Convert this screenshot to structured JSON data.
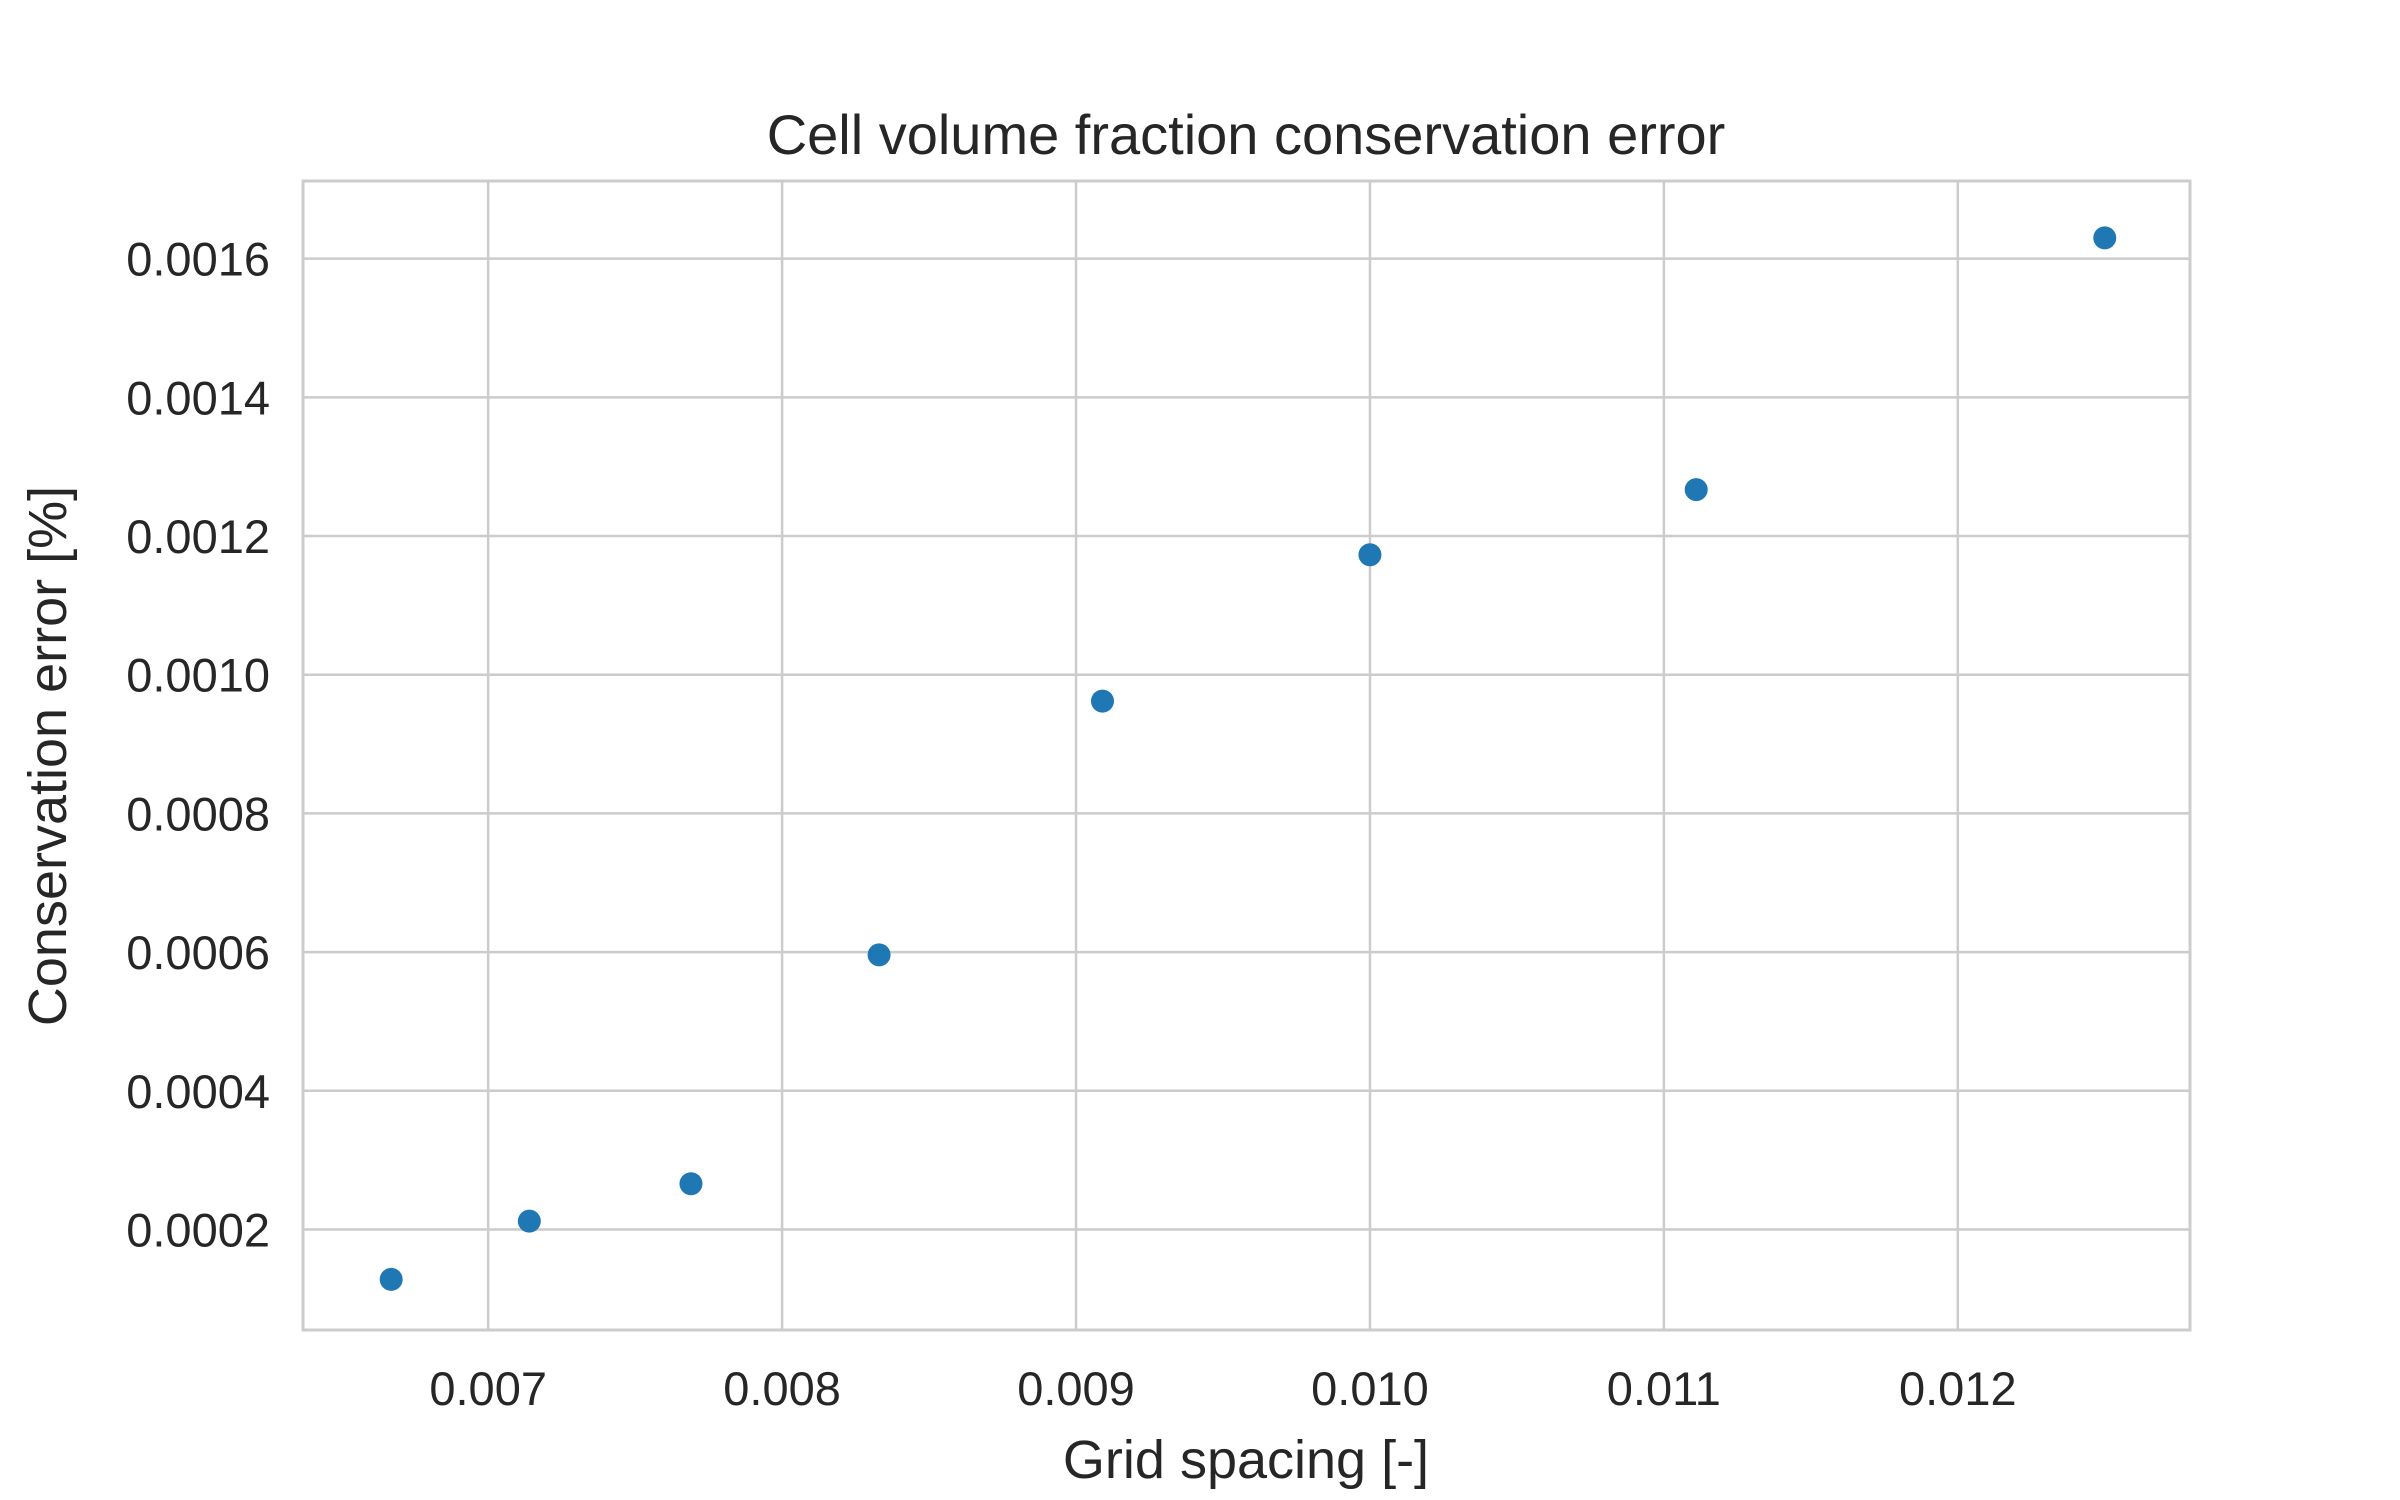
{
  "chart_data": {
    "type": "scatter",
    "title": "Cell volume fraction conservation error",
    "xlabel": "Grid spacing [-]",
    "ylabel": "Conservation error [%]",
    "xlim": [
      0.00637,
      0.01279
    ],
    "ylim": [
      5.5e-05,
      0.001712
    ],
    "xticks": [
      0.007,
      0.008,
      0.009,
      0.01,
      0.011,
      0.012
    ],
    "xtick_labels": [
      "0.007",
      "0.008",
      "0.009",
      "0.010",
      "0.011",
      "0.012"
    ],
    "yticks": [
      0.0002,
      0.0004,
      0.0006,
      0.0008,
      0.001,
      0.0012,
      0.0014,
      0.0016
    ],
    "ytick_labels": [
      "0.0002",
      "0.0004",
      "0.0006",
      "0.0008",
      "0.0010",
      "0.0012",
      "0.0014",
      "0.0016"
    ],
    "grid": true,
    "legend": "none",
    "color": "#1f77b4",
    "points": [
      {
        "x": 0.00667,
        "y": 0.000128
      },
      {
        "x": 0.00714,
        "y": 0.000212
      },
      {
        "x": 0.00769,
        "y": 0.000266
      },
      {
        "x": 0.00833,
        "y": 0.000596
      },
      {
        "x": 0.00909,
        "y": 0.000962
      },
      {
        "x": 0.01,
        "y": 0.001173
      },
      {
        "x": 0.01111,
        "y": 0.001267
      },
      {
        "x": 0.0125,
        "y": 0.00163
      }
    ]
  }
}
